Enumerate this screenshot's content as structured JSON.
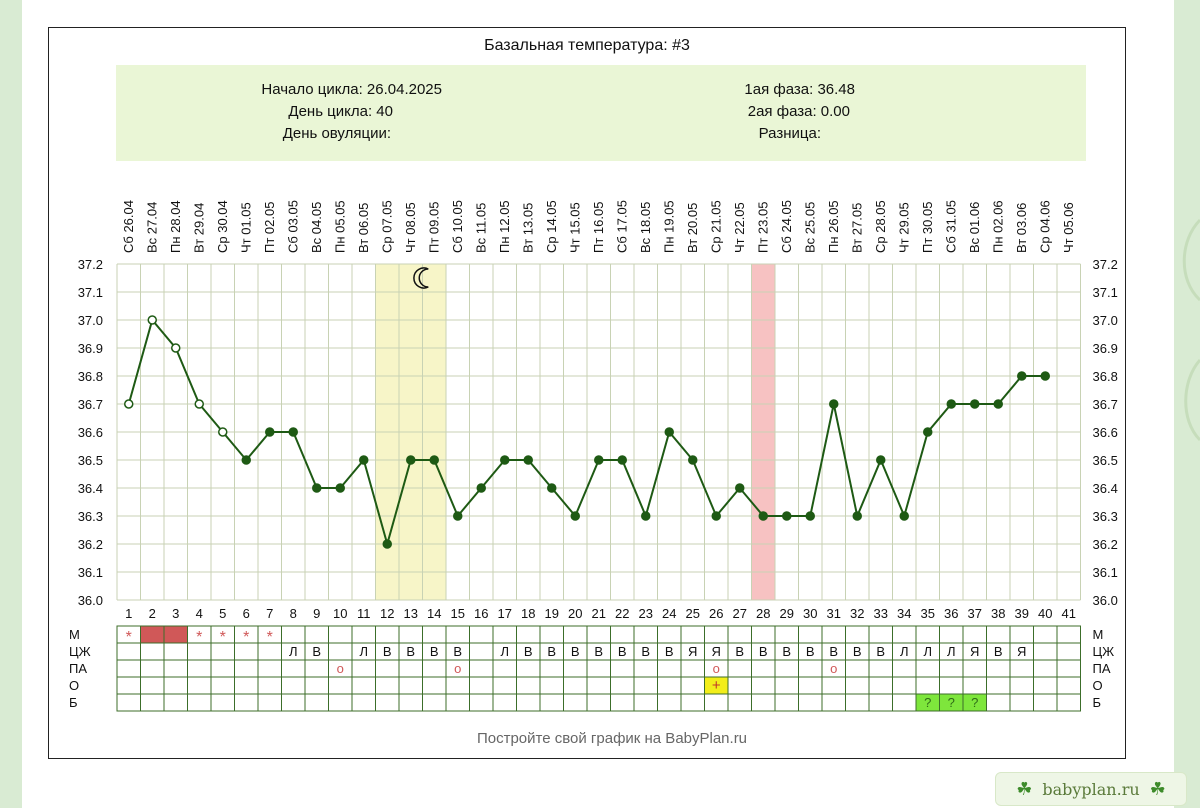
{
  "chart_data": {
    "type": "line",
    "title": "Базальная температура: #3",
    "info": {
      "cycle_start": "Начало цикла: 26.04.2025",
      "cycle_day": "День цикла: 40",
      "ovulation_day": "День овуляции:",
      "phase1": "1ая фаза: 36.48",
      "phase2": "2ая фаза: 0.00",
      "difference": "Разница:"
    },
    "dates": [
      "Сб 26.04",
      "Вс 27.04",
      "Пн 28.04",
      "Вт 29.04",
      "Ср 30.04",
      "Чт 01.05",
      "Пт 02.05",
      "Сб 03.05",
      "Вс 04.05",
      "Пн 05.05",
      "Вт 06.05",
      "Ср 07.05",
      "Чт 08.05",
      "Пт 09.05",
      "Сб 10.05",
      "Вс 11.05",
      "Пн 12.05",
      "Вт 13.05",
      "Ср 14.05",
      "Чт 15.05",
      "Пт 16.05",
      "Сб 17.05",
      "Вс 18.05",
      "Пн 19.05",
      "Вт 20.05",
      "Ср 21.05",
      "Чт 22.05",
      "Пт 23.05",
      "Сб 24.05",
      "Вс 25.05",
      "Пн 26.05",
      "Вт 27.05",
      "Ср 28.05",
      "Чт 29.05",
      "Пт 30.05",
      "Сб 31.05",
      "Вс 01.06",
      "Пн 02.06",
      "Вт 03.06",
      "Ср 04.06",
      "Чт 05.06"
    ],
    "days": [
      "1",
      "2",
      "3",
      "4",
      "5",
      "6",
      "7",
      "8",
      "9",
      "10",
      "11",
      "12",
      "13",
      "14",
      "15",
      "16",
      "17",
      "18",
      "19",
      "20",
      "21",
      "22",
      "23",
      "24",
      "25",
      "26",
      "27",
      "28",
      "29",
      "30",
      "31",
      "32",
      "33",
      "34",
      "35",
      "36",
      "37",
      "38",
      "39",
      "40",
      "41"
    ],
    "temperatures": [
      36.7,
      37.0,
      36.9,
      36.7,
      36.6,
      36.5,
      36.6,
      36.6,
      36.4,
      36.4,
      36.5,
      36.2,
      36.5,
      36.5,
      36.3,
      36.4,
      36.5,
      36.5,
      36.4,
      36.3,
      36.5,
      36.5,
      36.3,
      36.6,
      36.5,
      36.3,
      36.4,
      36.3,
      36.3,
      36.3,
      36.7,
      36.3,
      36.5,
      36.3,
      36.6,
      36.7,
      36.7,
      36.7,
      36.8,
      36.8,
      null
    ],
    "open_markers_days": [
      1,
      2,
      3,
      4,
      5
    ],
    "y_ticks": [
      "37.2",
      "37.1",
      "37.0",
      "36.9",
      "36.8",
      "36.7",
      "36.6",
      "36.5",
      "36.4",
      "36.3",
      "36.2",
      "36.1",
      "36.0"
    ],
    "ylim": [
      36.0,
      37.2
    ],
    "highlight_yellow_days": [
      12,
      14
    ],
    "highlight_pink_day": 28,
    "moon_day": 14,
    "colors": {
      "line": "#1e5a14",
      "grid": "#c8d2b4",
      "info_bg": "#eaf6d6",
      "yellow_band": "#f7f5c8",
      "pink_band": "#f7c2c2",
      "period_cell": "#d05858",
      "ovulation_cell": "#f2ee1a",
      "pregnancy_cell": "#7ee63c",
      "asterisk": "#d05858",
      "circle_mark": "#d05858"
    },
    "rows": [
      {
        "label": "М",
        "cells": {
          "1": "*",
          "4": "*",
          "5": "*",
          "6": "*",
          "7": "*"
        },
        "filled_days": [
          2,
          3
        ]
      },
      {
        "label": "ЦЖ",
        "cells": {
          "8": "Л",
          "9": "В",
          "11": "Л",
          "12": "В",
          "13": "В",
          "14": "В",
          "15": "В",
          "17": "Л",
          "18": "В",
          "19": "В",
          "20": "В",
          "21": "В",
          "22": "В",
          "23": "В",
          "24": "В",
          "25": "Я",
          "26": "Я",
          "27": "В",
          "28": "В",
          "29": "В",
          "30": "В",
          "31": "В",
          "32": "В",
          "33": "В",
          "34": "Л",
          "35": "Л",
          "36": "Л",
          "37": "Я",
          "38": "В",
          "39": "Я"
        }
      },
      {
        "label": "ПА",
        "cells": {
          "10": "o",
          "15": "o",
          "26": "o",
          "31": "o"
        }
      },
      {
        "label": "О",
        "cells": {
          "26": "+"
        }
      },
      {
        "label": "Б",
        "cells": {
          "35": "?",
          "36": "?",
          "37": "?"
        }
      }
    ],
    "footer": "Постройте свой график на BabyPlan.ru"
  },
  "watermark": "babyplan.ru"
}
